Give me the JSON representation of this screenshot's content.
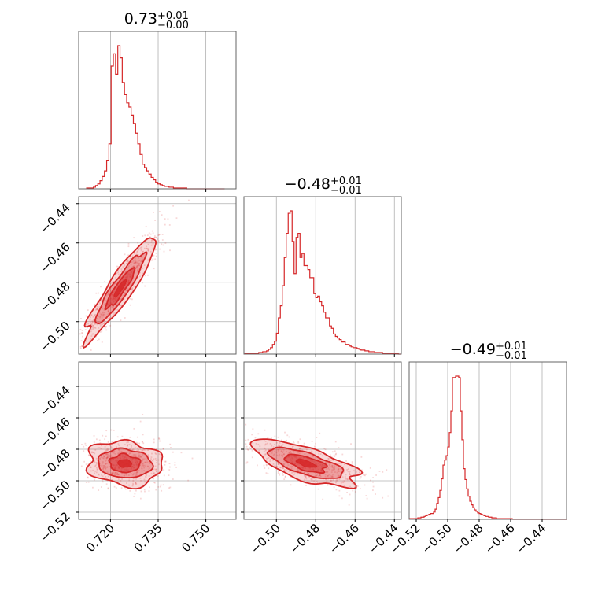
{
  "chart_data": {
    "type": "corner",
    "color": "#d62728",
    "grid": true,
    "parameters": [
      {
        "title_value": "0.73",
        "title_plus": "+0.01",
        "title_minus": "−0.00",
        "range": [
          0.71,
          0.7595
        ],
        "ticks": [
          0.72,
          0.735,
          0.75
        ],
        "tick_labels": [
          "0.720",
          "0.735",
          "0.750"
        ]
      },
      {
        "title_value": "−0.48",
        "title_plus": "+0.01",
        "title_minus": "−0.01",
        "range": [
          -0.5165,
          -0.4365
        ],
        "ticks": [
          -0.5,
          -0.48,
          -0.46,
          -0.44
        ],
        "tick_labels": [
          "−0.50",
          "−0.48",
          "−0.46",
          "−0.44"
        ]
      },
      {
        "title_value": "−0.49",
        "title_plus": "+0.01",
        "title_minus": "−0.01",
        "range": [
          -0.5245,
          -0.4245
        ],
        "ticks": [
          -0.52,
          -0.5,
          -0.48,
          -0.46,
          -0.44
        ],
        "tick_labels": [
          "−0.52",
          "−0.50",
          "−0.48",
          "−0.46",
          "−0.44"
        ]
      }
    ],
    "histograms": [
      {
        "param": 0,
        "bins": [
          0.7125,
          0.7132,
          0.7139,
          0.7146,
          0.7153,
          0.716,
          0.7167,
          0.7174,
          0.7181,
          0.7188,
          0.7195,
          0.7202,
          0.7209,
          0.7216,
          0.7223,
          0.723,
          0.7237,
          0.7244,
          0.7251,
          0.7258,
          0.7265,
          0.7272,
          0.7279,
          0.7286,
          0.7293,
          0.73,
          0.7307,
          0.7314,
          0.7321,
          0.7328,
          0.7335,
          0.7342,
          0.7349,
          0.7356,
          0.7363,
          0.737,
          0.7377,
          0.7384,
          0.7391,
          0.7398,
          0.7405,
          0.7412,
          0.7419,
          0.7426,
          0.7433,
          0.744,
          0.7447,
          0.7454,
          0.7461,
          0.7468,
          0.7475,
          0.7482,
          0.7489,
          0.7496,
          0.7503,
          0.751,
          0.7517,
          0.7524,
          0.7531,
          0.7538,
          0.7545,
          0.7552,
          0.7559
        ],
        "counts": [
          1,
          1,
          1,
          2,
          4,
          6,
          10,
          15,
          22,
          35,
          55,
          150,
          165,
          140,
          175,
          160,
          130,
          115,
          105,
          100,
          90,
          80,
          68,
          55,
          42,
          30,
          26,
          22,
          18,
          14,
          11,
          8,
          6,
          5,
          4,
          3,
          3,
          2,
          2,
          1,
          1,
          1,
          1,
          1,
          1,
          0,
          0,
          0,
          0,
          0,
          0,
          0,
          0,
          0,
          0,
          0,
          0,
          0,
          0,
          0,
          0,
          0
        ]
      },
      {
        "param": 1,
        "bins": [
          -0.516,
          -0.515,
          -0.514,
          -0.513,
          -0.512,
          -0.511,
          -0.51,
          -0.509,
          -0.508,
          -0.507,
          -0.506,
          -0.505,
          -0.504,
          -0.503,
          -0.502,
          -0.501,
          -0.5,
          -0.499,
          -0.498,
          -0.497,
          -0.496,
          -0.495,
          -0.494,
          -0.493,
          -0.492,
          -0.491,
          -0.49,
          -0.489,
          -0.488,
          -0.487,
          -0.486,
          -0.485,
          -0.484,
          -0.483,
          -0.482,
          -0.481,
          -0.48,
          -0.479,
          -0.478,
          -0.477,
          -0.476,
          -0.475,
          -0.474,
          -0.473,
          -0.472,
          -0.471,
          -0.47,
          -0.469,
          -0.468,
          -0.467,
          -0.466,
          -0.465,
          -0.464,
          -0.463,
          -0.462,
          -0.461,
          -0.46,
          -0.459,
          -0.458,
          -0.457,
          -0.456,
          -0.455,
          -0.454,
          -0.453,
          -0.452,
          -0.451,
          -0.45,
          -0.449,
          -0.448,
          -0.447,
          -0.446,
          -0.445,
          -0.444,
          -0.443,
          -0.442,
          -0.441,
          -0.44,
          -0.439,
          -0.438,
          -0.437,
          -0.4365
        ],
        "counts": [
          1,
          1,
          1,
          1,
          1,
          1,
          1,
          2,
          2,
          3,
          3,
          4,
          6,
          8,
          12,
          16,
          26,
          45,
          60,
          85,
          120,
          150,
          175,
          178,
          140,
          100,
          145,
          150,
          120,
          125,
          110,
          110,
          105,
          95,
          95,
          75,
          70,
          72,
          65,
          60,
          52,
          45,
          45,
          35,
          32,
          25,
          22,
          20,
          18,
          15,
          15,
          12,
          12,
          10,
          9,
          8,
          8,
          7,
          6,
          5,
          5,
          4,
          4,
          3,
          3,
          3,
          2,
          2,
          2,
          2,
          1,
          1,
          1,
          1,
          1,
          1,
          1,
          1,
          0,
          0
        ]
      },
      {
        "param": 2,
        "bins": [
          -0.524,
          -0.523,
          -0.522,
          -0.521,
          -0.52,
          -0.519,
          -0.518,
          -0.517,
          -0.516,
          -0.515,
          -0.514,
          -0.513,
          -0.512,
          -0.511,
          -0.51,
          -0.509,
          -0.508,
          -0.507,
          -0.506,
          -0.505,
          -0.504,
          -0.503,
          -0.502,
          -0.501,
          -0.5,
          -0.499,
          -0.498,
          -0.497,
          -0.496,
          -0.495,
          -0.494,
          -0.493,
          -0.492,
          -0.491,
          -0.49,
          -0.489,
          -0.488,
          -0.487,
          -0.486,
          -0.485,
          -0.484,
          -0.483,
          -0.482,
          -0.481,
          -0.48,
          -0.479,
          -0.478,
          -0.477,
          -0.476,
          -0.475,
          -0.474,
          -0.473,
          -0.472,
          -0.471,
          -0.47,
          -0.469,
          -0.468,
          -0.467,
          -0.466,
          -0.465,
          -0.464,
          -0.463,
          -0.462,
          -0.461,
          -0.46,
          -0.459,
          -0.458,
          -0.457,
          -0.456,
          -0.455,
          -0.454,
          -0.453,
          -0.452,
          -0.451,
          -0.45,
          -0.449,
          -0.448,
          -0.447,
          -0.446,
          -0.445,
          -0.444,
          -0.443,
          -0.442,
          -0.441,
          -0.44,
          -0.439,
          -0.438,
          -0.437,
          -0.436,
          -0.435,
          -0.434,
          -0.433,
          -0.432,
          -0.431,
          -0.43,
          -0.429,
          -0.428,
          -0.427,
          -0.426,
          -0.425,
          -0.4245
        ],
        "counts": [
          1,
          1,
          1,
          1,
          1,
          2,
          2,
          3,
          3,
          4,
          5,
          6,
          7,
          8,
          8,
          10,
          14,
          22,
          30,
          40,
          56,
          75,
          82,
          88,
          100,
          120,
          150,
          196,
          196,
          198,
          198,
          196,
          150,
          110,
          70,
          55,
          42,
          32,
          25,
          20,
          16,
          13,
          11,
          9,
          8,
          7,
          6,
          5,
          4,
          4,
          3,
          3,
          2,
          2,
          2,
          1,
          1,
          1,
          1,
          1,
          1,
          1,
          1,
          1,
          1,
          0,
          0,
          0,
          0,
          0,
          0,
          0,
          0,
          0,
          0,
          0,
          0,
          0,
          0,
          0,
          0,
          0,
          0,
          0,
          0,
          0,
          0,
          0,
          0,
          0,
          0,
          0,
          0,
          0,
          0,
          0,
          0,
          0,
          0,
          0
        ]
      }
    ],
    "contours": [
      {
        "x_param": 0,
        "y_param": 1,
        "center": [
          0.7231,
          -0.483
        ],
        "sigma_x": 0.0046,
        "sigma_y": 0.0105,
        "rho": 0.92
      },
      {
        "x_param": 0,
        "y_param": 2,
        "center": [
          0.7245,
          -0.489
        ],
        "sigma_x": 0.0048,
        "sigma_y": 0.0056,
        "rho": -0.05
      },
      {
        "x_param": 1,
        "y_param": 2,
        "center": [
          -0.485,
          -0.489
        ],
        "sigma_x": 0.0105,
        "sigma_y": 0.0058,
        "rho": -0.65
      }
    ]
  }
}
